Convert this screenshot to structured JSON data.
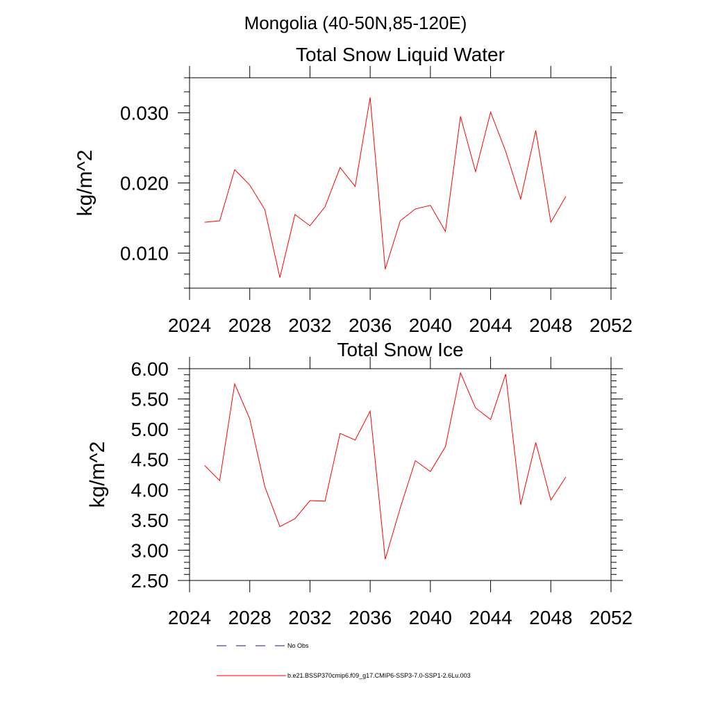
{
  "figure": {
    "title": "Mongolia (40-50N,85-120E)"
  },
  "legend": {
    "entries": [
      {
        "label": "No Obs",
        "color": "#1a1a80",
        "dash": "dashed"
      },
      {
        "label": "b.e21.BSSP370cmip6.f09_g17.CMIP6-SSP3-7.0-SSP1-2.6Lu.003",
        "color": "#ff0000",
        "dash": "solid"
      }
    ]
  },
  "chart_data": [
    {
      "type": "line",
      "title": "Total Snow Liquid Water",
      "xlabel": "",
      "ylabel": "kg/m^2",
      "xlim": [
        2024,
        2052
      ],
      "ylim": [
        0.005,
        0.035
      ],
      "x_major_ticks": [
        2024,
        2028,
        2032,
        2036,
        2040,
        2044,
        2048,
        2052
      ],
      "x_tick_labels": [
        "2024",
        "2028",
        "2032",
        "2036",
        "2040",
        "2044",
        "2048",
        "2052"
      ],
      "y_major_ticks": [
        0.01,
        0.02,
        0.03
      ],
      "y_tick_labels": [
        "0.010",
        "0.020",
        "0.030"
      ],
      "y_minor_step": 0.002,
      "grid": false,
      "series": [
        {
          "color": "#ff0000",
          "x": [
            2025,
            2026,
            2027,
            2028,
            2029,
            2030,
            2031,
            2032,
            2033,
            2034,
            2035,
            2036,
            2037,
            2038,
            2039,
            2040,
            2041,
            2042,
            2043,
            2044,
            2045,
            2046,
            2047,
            2048,
            2049
          ],
          "values": [
            0.0144,
            0.0146,
            0.0219,
            0.0197,
            0.0162,
            0.0065,
            0.0155,
            0.0139,
            0.0166,
            0.0222,
            0.0195,
            0.0322,
            0.0077,
            0.0146,
            0.0163,
            0.0168,
            0.0131,
            0.0295,
            0.0216,
            0.0301,
            0.0245,
            0.0177,
            0.0275,
            0.0144,
            0.0181
          ]
        }
      ]
    },
    {
      "type": "line",
      "title": "Total Snow Ice",
      "xlabel": "",
      "ylabel": "kg/m^2",
      "xlim": [
        2024,
        2052
      ],
      "ylim": [
        2.5,
        6.0
      ],
      "x_major_ticks": [
        2024,
        2028,
        2032,
        2036,
        2040,
        2044,
        2048,
        2052
      ],
      "x_tick_labels": [
        "2024",
        "2028",
        "2032",
        "2036",
        "2040",
        "2044",
        "2048",
        "2052"
      ],
      "y_major_ticks": [
        2.5,
        3.0,
        3.5,
        4.0,
        4.5,
        5.0,
        5.5,
        6.0
      ],
      "y_tick_labels": [
        "2.50",
        "3.00",
        "3.50",
        "4.00",
        "4.50",
        "5.00",
        "5.50",
        "6.00"
      ],
      "y_minor_step": 0.1,
      "grid": false,
      "series": [
        {
          "color": "#ff0000",
          "x": [
            2025,
            2026,
            2027,
            2028,
            2029,
            2030,
            2031,
            2032,
            2033,
            2034,
            2035,
            2036,
            2037,
            2038,
            2039,
            2040,
            2041,
            2042,
            2043,
            2044,
            2045,
            2046,
            2047,
            2048,
            2049
          ],
          "values": [
            4.4,
            4.15,
            5.75,
            5.17,
            4.05,
            3.39,
            3.52,
            3.82,
            3.81,
            4.93,
            4.82,
            5.3,
            2.85,
            3.7,
            4.48,
            4.3,
            4.71,
            5.93,
            5.35,
            5.16,
            5.91,
            3.75,
            4.78,
            3.83,
            4.21
          ]
        }
      ]
    }
  ]
}
